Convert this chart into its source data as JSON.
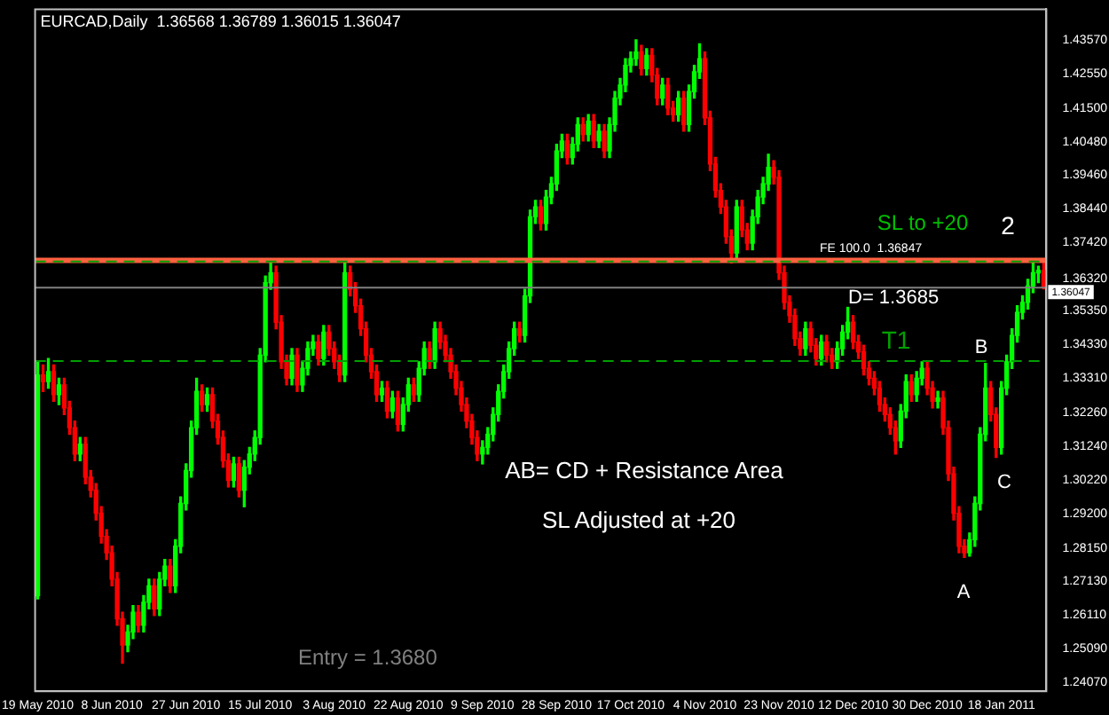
{
  "chart_data": {
    "type": "candlestick",
    "title": "EURCAD,Daily  1.36568 1.36789 1.36015 1.36047",
    "categories": [
      "19 May 2010",
      null,
      null,
      null,
      null,
      null,
      null,
      null,
      null,
      null,
      null,
      null,
      null,
      null,
      "8 Jun 2010",
      null,
      null,
      null,
      null,
      null,
      null,
      null,
      null,
      null,
      null,
      null,
      null,
      null,
      "27 Jun 2010",
      null,
      null,
      null,
      null,
      null,
      null,
      null,
      null,
      null,
      null,
      null,
      null,
      null,
      "15 Jul 2010",
      null,
      null,
      null,
      null,
      null,
      null,
      null,
      null,
      null,
      null,
      null,
      null,
      null,
      "3 Aug 2010",
      null,
      null,
      null,
      null,
      null,
      null,
      null,
      null,
      null,
      null,
      null,
      null,
      null,
      "22 Aug 2010",
      null,
      null,
      null,
      null,
      null,
      null,
      null,
      null,
      null,
      null,
      null,
      null,
      null,
      "9 Sep 2010",
      null,
      null,
      null,
      null,
      null,
      null,
      null,
      null,
      null,
      null,
      null,
      null,
      null,
      "28 Sep 2010",
      null,
      null,
      null,
      null,
      null,
      null,
      null,
      null,
      null,
      null,
      null,
      null,
      null,
      "17 Oct 2010",
      null,
      null,
      null,
      null,
      null,
      null,
      null,
      null,
      null,
      null,
      null,
      null,
      null,
      "4 Nov 2010",
      null,
      null,
      null,
      null,
      null,
      null,
      null,
      null,
      null,
      null,
      null,
      null,
      null,
      "23 Nov 2010",
      null,
      null,
      null,
      null,
      null,
      null,
      null,
      null,
      null,
      null,
      null,
      null,
      null,
      "12 Dec 2010",
      null,
      null,
      null,
      null,
      null,
      null,
      null,
      null,
      null,
      null,
      null,
      null,
      null,
      "30 Dec 2010",
      null,
      null,
      null,
      null,
      null,
      null,
      null,
      null,
      null,
      null,
      null,
      null,
      null,
      "18 Jan 2011",
      null,
      null,
      null,
      null,
      null,
      null,
      null,
      null
    ],
    "ohlc": [
      [
        1.267,
        1.338,
        1.266,
        1.334
      ],
      [
        1.334,
        1.337,
        1.329,
        1.332
      ],
      [
        1.332,
        1.339,
        1.33,
        1.335
      ],
      [
        1.335,
        1.337,
        1.326,
        1.328
      ],
      [
        1.328,
        1.333,
        1.325,
        1.331
      ],
      [
        1.331,
        1.333,
        1.322,
        1.324
      ],
      [
        1.324,
        1.326,
        1.316,
        1.318
      ],
      [
        1.318,
        1.32,
        1.308,
        1.31
      ],
      [
        1.31,
        1.315,
        1.308,
        1.313
      ],
      [
        1.313,
        1.315,
        1.301,
        1.303
      ],
      [
        1.303,
        1.305,
        1.297,
        1.299
      ],
      [
        1.299,
        1.301,
        1.29,
        1.292
      ],
      [
        1.292,
        1.294,
        1.283,
        1.285
      ],
      [
        1.285,
        1.287,
        1.278,
        1.28
      ],
      [
        1.28,
        1.282,
        1.27,
        1.272
      ],
      [
        1.272,
        1.274,
        1.258,
        1.26
      ],
      [
        1.26,
        1.262,
        1.2465,
        1.252
      ],
      [
        1.252,
        1.258,
        1.25,
        1.256
      ],
      [
        1.256,
        1.264,
        1.254,
        1.262
      ],
      [
        1.262,
        1.264,
        1.256,
        1.258
      ],
      [
        1.258,
        1.267,
        1.256,
        1.265
      ],
      [
        1.265,
        1.272,
        1.263,
        1.27
      ],
      [
        1.27,
        1.272,
        1.261,
        1.263
      ],
      [
        1.263,
        1.274,
        1.261,
        1.272
      ],
      [
        1.272,
        1.278,
        1.27,
        1.276
      ],
      [
        1.276,
        1.278,
        1.268,
        1.27
      ],
      [
        1.27,
        1.284,
        1.268,
        1.282
      ],
      [
        1.282,
        1.297,
        1.28,
        1.295
      ],
      [
        1.295,
        1.307,
        1.293,
        1.305
      ],
      [
        1.305,
        1.32,
        1.303,
        1.318
      ],
      [
        1.318,
        1.333,
        1.316,
        1.329
      ],
      [
        1.329,
        1.331,
        1.323,
        1.325
      ],
      [
        1.325,
        1.33,
        1.323,
        1.328
      ],
      [
        1.328,
        1.33,
        1.318,
        1.32
      ],
      [
        1.32,
        1.322,
        1.313,
        1.315
      ],
      [
        1.315,
        1.317,
        1.306,
        1.308
      ],
      [
        1.308,
        1.31,
        1.3,
        1.302
      ],
      [
        1.302,
        1.309,
        1.3,
        1.307
      ],
      [
        1.307,
        1.309,
        1.297,
        1.299
      ],
      [
        1.299,
        1.308,
        1.294,
        1.306
      ],
      [
        1.306,
        1.312,
        1.304,
        1.31
      ],
      [
        1.31,
        1.317,
        1.308,
        1.315
      ],
      [
        1.315,
        1.342,
        1.313,
        1.34
      ],
      [
        1.34,
        1.364,
        1.338,
        1.362
      ],
      [
        1.362,
        1.3682,
        1.36,
        1.365
      ],
      [
        1.365,
        1.367,
        1.348,
        1.35
      ],
      [
        1.35,
        1.352,
        1.336,
        1.338
      ],
      [
        1.338,
        1.34,
        1.331,
        1.333
      ],
      [
        1.333,
        1.342,
        1.331,
        1.34
      ],
      [
        1.34,
        1.342,
        1.329,
        1.331
      ],
      [
        1.331,
        1.338,
        1.329,
        1.336
      ],
      [
        1.336,
        1.344,
        1.334,
        1.342
      ],
      [
        1.342,
        1.346,
        1.34,
        1.344
      ],
      [
        1.344,
        1.346,
        1.337,
        1.339
      ],
      [
        1.339,
        1.349,
        1.337,
        1.347
      ],
      [
        1.347,
        1.349,
        1.34,
        1.342
      ],
      [
        1.342,
        1.344,
        1.336,
        1.338
      ],
      [
        1.338,
        1.34,
        1.332,
        1.334
      ],
      [
        1.334,
        1.3682,
        1.332,
        1.365
      ],
      [
        1.365,
        1.367,
        1.358,
        1.36
      ],
      [
        1.36,
        1.362,
        1.353,
        1.355
      ],
      [
        1.355,
        1.357,
        1.346,
        1.348
      ],
      [
        1.348,
        1.35,
        1.338,
        1.34
      ],
      [
        1.34,
        1.342,
        1.333,
        1.335
      ],
      [
        1.335,
        1.337,
        1.326,
        1.328
      ],
      [
        1.328,
        1.332,
        1.326,
        1.33
      ],
      [
        1.33,
        1.332,
        1.321,
        1.323
      ],
      [
        1.323,
        1.329,
        1.321,
        1.327
      ],
      [
        1.327,
        1.329,
        1.317,
        1.319
      ],
      [
        1.319,
        1.327,
        1.317,
        1.325
      ],
      [
        1.325,
        1.333,
        1.323,
        1.331
      ],
      [
        1.331,
        1.333,
        1.326,
        1.328
      ],
      [
        1.328,
        1.338,
        1.326,
        1.336
      ],
      [
        1.336,
        1.344,
        1.334,
        1.342
      ],
      [
        1.342,
        1.344,
        1.336,
        1.338
      ],
      [
        1.338,
        1.35,
        1.336,
        1.348
      ],
      [
        1.348,
        1.35,
        1.342,
        1.344
      ],
      [
        1.344,
        1.346,
        1.338,
        1.34
      ],
      [
        1.34,
        1.342,
        1.333,
        1.335
      ],
      [
        1.335,
        1.337,
        1.328,
        1.33
      ],
      [
        1.33,
        1.332,
        1.323,
        1.325
      ],
      [
        1.325,
        1.327,
        1.318,
        1.32
      ],
      [
        1.32,
        1.322,
        1.313,
        1.315
      ],
      [
        1.315,
        1.317,
        1.308,
        1.31
      ],
      [
        1.31,
        1.314,
        1.307,
        1.312
      ],
      [
        1.312,
        1.318,
        1.31,
        1.316
      ],
      [
        1.316,
        1.324,
        1.314,
        1.322
      ],
      [
        1.322,
        1.331,
        1.32,
        1.329
      ],
      [
        1.329,
        1.337,
        1.327,
        1.335
      ],
      [
        1.335,
        1.344,
        1.333,
        1.342
      ],
      [
        1.342,
        1.35,
        1.34,
        1.348
      ],
      [
        1.348,
        1.35,
        1.344,
        1.346
      ],
      [
        1.346,
        1.36,
        1.344,
        1.358
      ],
      [
        1.358,
        1.384,
        1.356,
        1.382
      ],
      [
        1.382,
        1.387,
        1.38,
        1.385
      ],
      [
        1.385,
        1.387,
        1.378,
        1.38
      ],
      [
        1.38,
        1.39,
        1.378,
        1.388
      ],
      [
        1.388,
        1.394,
        1.386,
        1.392
      ],
      [
        1.392,
        1.404,
        1.39,
        1.402
      ],
      [
        1.402,
        1.407,
        1.4,
        1.405
      ],
      [
        1.405,
        1.407,
        1.398,
        1.4
      ],
      [
        1.4,
        1.406,
        1.398,
        1.404
      ],
      [
        1.404,
        1.412,
        1.402,
        1.41
      ],
      [
        1.41,
        1.412,
        1.405,
        1.407
      ],
      [
        1.407,
        1.413,
        1.405,
        1.411
      ],
      [
        1.411,
        1.413,
        1.403,
        1.405
      ],
      [
        1.405,
        1.41,
        1.403,
        1.408
      ],
      [
        1.408,
        1.41,
        1.4,
        1.402
      ],
      [
        1.402,
        1.412,
        1.4,
        1.41
      ],
      [
        1.41,
        1.42,
        1.408,
        1.418
      ],
      [
        1.418,
        1.424,
        1.416,
        1.422
      ],
      [
        1.422,
        1.43,
        1.42,
        1.428
      ],
      [
        1.428,
        1.432,
        1.426,
        1.43
      ],
      [
        1.43,
        1.4357,
        1.428,
        1.432
      ],
      [
        1.432,
        1.434,
        1.425,
        1.427
      ],
      [
        1.427,
        1.433,
        1.425,
        1.431
      ],
      [
        1.431,
        1.433,
        1.423,
        1.425
      ],
      [
        1.425,
        1.427,
        1.416,
        1.418
      ],
      [
        1.418,
        1.424,
        1.416,
        1.422
      ],
      [
        1.422,
        1.424,
        1.413,
        1.415
      ],
      [
        1.415,
        1.417,
        1.411,
        1.413
      ],
      [
        1.413,
        1.42,
        1.411,
        1.418
      ],
      [
        1.418,
        1.42,
        1.408,
        1.41
      ],
      [
        1.41,
        1.422,
        1.408,
        1.42
      ],
      [
        1.42,
        1.428,
        1.418,
        1.426
      ],
      [
        1.426,
        1.4345,
        1.424,
        1.43
      ],
      [
        1.43,
        1.432,
        1.41,
        1.412
      ],
      [
        1.412,
        1.414,
        1.396,
        1.398
      ],
      [
        1.398,
        1.4,
        1.388,
        1.39
      ],
      [
        1.39,
        1.392,
        1.383,
        1.385
      ],
      [
        1.385,
        1.387,
        1.374,
        1.376
      ],
      [
        1.376,
        1.378,
        1.368,
        1.371
      ],
      [
        1.371,
        1.387,
        1.369,
        1.385
      ],
      [
        1.385,
        1.387,
        1.376,
        1.378
      ],
      [
        1.378,
        1.38,
        1.372,
        1.374
      ],
      [
        1.374,
        1.384,
        1.372,
        1.382
      ],
      [
        1.382,
        1.39,
        1.38,
        1.388
      ],
      [
        1.388,
        1.394,
        1.386,
        1.392
      ],
      [
        1.392,
        1.401,
        1.39,
        1.397
      ],
      [
        1.397,
        1.399,
        1.392,
        1.394
      ],
      [
        1.394,
        1.396,
        1.363,
        1.365
      ],
      [
        1.365,
        1.367,
        1.354,
        1.356
      ],
      [
        1.356,
        1.358,
        1.35,
        1.352
      ],
      [
        1.352,
        1.354,
        1.343,
        1.345
      ],
      [
        1.345,
        1.347,
        1.34,
        1.342
      ],
      [
        1.342,
        1.35,
        1.34,
        1.348
      ],
      [
        1.348,
        1.35,
        1.341,
        1.343
      ],
      [
        1.343,
        1.345,
        1.337,
        1.339
      ],
      [
        1.339,
        1.346,
        1.337,
        1.344
      ],
      [
        1.344,
        1.346,
        1.338,
        1.34
      ],
      [
        1.34,
        1.342,
        1.336,
        1.338
      ],
      [
        1.338,
        1.344,
        1.336,
        1.342
      ],
      [
        1.342,
        1.349,
        1.34,
        1.347
      ],
      [
        1.347,
        1.3545,
        1.345,
        1.35
      ],
      [
        1.35,
        1.352,
        1.342,
        1.344
      ],
      [
        1.344,
        1.346,
        1.339,
        1.341
      ],
      [
        1.341,
        1.343,
        1.334,
        1.336
      ],
      [
        1.336,
        1.338,
        1.331,
        1.333
      ],
      [
        1.333,
        1.335,
        1.328,
        1.33
      ],
      [
        1.33,
        1.332,
        1.323,
        1.325
      ],
      [
        1.325,
        1.327,
        1.32,
        1.322
      ],
      [
        1.322,
        1.324,
        1.316,
        1.318
      ],
      [
        1.318,
        1.32,
        1.31,
        1.314
      ],
      [
        1.314,
        1.325,
        1.312,
        1.323
      ],
      [
        1.323,
        1.334,
        1.321,
        1.332
      ],
      [
        1.332,
        1.334,
        1.326,
        1.328
      ],
      [
        1.328,
        1.335,
        1.326,
        1.333
      ],
      [
        1.333,
        1.338,
        1.331,
        1.336
      ],
      [
        1.336,
        1.338,
        1.328,
        1.33
      ],
      [
        1.33,
        1.332,
        1.324,
        1.326
      ],
      [
        1.326,
        1.329,
        1.324,
        1.327
      ],
      [
        1.327,
        1.329,
        1.316,
        1.318
      ],
      [
        1.318,
        1.32,
        1.302,
        1.304
      ],
      [
        1.304,
        1.306,
        1.29,
        1.292
      ],
      [
        1.292,
        1.294,
        1.28,
        1.282
      ],
      [
        1.282,
        1.284,
        1.2786,
        1.28
      ],
      [
        1.28,
        1.286,
        1.279,
        1.284
      ],
      [
        1.284,
        1.297,
        1.282,
        1.295
      ],
      [
        1.295,
        1.318,
        1.293,
        1.316
      ],
      [
        1.316,
        1.3375,
        1.314,
        1.33
      ],
      [
        1.33,
        1.332,
        1.32,
        1.322
      ],
      [
        1.322,
        1.324,
        1.309,
        1.312
      ],
      [
        1.312,
        1.332,
        1.31,
        1.33
      ],
      [
        1.33,
        1.34,
        1.328,
        1.338
      ],
      [
        1.338,
        1.348,
        1.336,
        1.346
      ],
      [
        1.346,
        1.355,
        1.344,
        1.353
      ],
      [
        1.353,
        1.358,
        1.351,
        1.356
      ],
      [
        1.356,
        1.363,
        1.354,
        1.361
      ],
      [
        1.361,
        1.3682,
        1.359,
        1.365
      ],
      [
        1.365,
        1.367,
        1.362,
        1.36568
      ],
      [
        1.36568,
        1.36789,
        1.36015,
        1.36047
      ]
    ],
    "ylim": [
      1.238,
      1.445
    ],
    "yticks": [
      {
        "value": 1.4357,
        "label": "1.43570"
      },
      {
        "value": 1.4255,
        "label": "1.42550"
      },
      {
        "value": 1.415,
        "label": "1.41500"
      },
      {
        "value": 1.4048,
        "label": "1.40480"
      },
      {
        "value": 1.3946,
        "label": "1.39460"
      },
      {
        "value": 1.3844,
        "label": "1.38440"
      },
      {
        "value": 1.3742,
        "label": "1.37420"
      },
      {
        "value": 1.3632,
        "label": "1.36320"
      },
      {
        "value": 1.3535,
        "label": "1.35350"
      },
      {
        "value": 1.3433,
        "label": "1.34330"
      },
      {
        "value": 1.3331,
        "label": "1.33310"
      },
      {
        "value": 1.3226,
        "label": "1.32260"
      },
      {
        "value": 1.3124,
        "label": "1.31240"
      },
      {
        "value": 1.3022,
        "label": "1.30220"
      },
      {
        "value": 1.292,
        "label": "1.29200"
      },
      {
        "value": 1.2815,
        "label": "1.28150"
      },
      {
        "value": 1.2713,
        "label": "1.27130"
      },
      {
        "value": 1.2611,
        "label": "1.26110"
      },
      {
        "value": 1.2509,
        "label": "1.25090"
      },
      {
        "value": 1.2407,
        "label": "1.24070"
      }
    ],
    "ref_lines": [
      {
        "axis": "y",
        "value": 1.36047,
        "label": "1.36047",
        "color": "#808080"
      },
      {
        "axis": "y",
        "value": 1.3688,
        "color": "#ff6040"
      },
      {
        "axis": "y",
        "value": 1.3382,
        "label": "T1",
        "color": "#00a000",
        "line_style": "dashed"
      },
      {
        "axis": "y",
        "value": 1.36847,
        "label": "FE 100.0  1.36847",
        "color": "#00a000",
        "line_style": "dashed"
      }
    ],
    "annotations": [
      "AB= CD + Resistance Area",
      "SL Adjusted at +20",
      "Entry = 1.3680",
      "2",
      "SL to +20",
      "D= 1.3685",
      "A",
      "B",
      "C"
    ],
    "grid": false,
    "legend": false
  }
}
